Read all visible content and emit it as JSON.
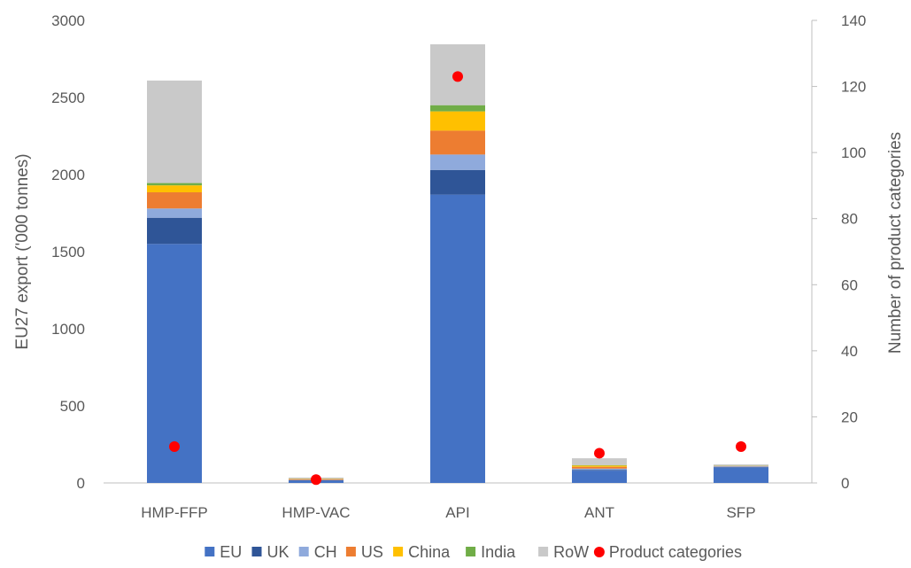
{
  "chart_data": {
    "type": "bar",
    "stacked": true,
    "categories": [
      "HMP-FFP",
      "HMP-VAC",
      "API",
      "ANT",
      "SFP"
    ],
    "series": [
      {
        "name": "EU",
        "color": "#4472C4",
        "values": [
          1550,
          15,
          1870,
          80,
          100
        ]
      },
      {
        "name": "UK",
        "color": "#2F5597",
        "values": [
          170,
          3,
          160,
          5,
          3
        ]
      },
      {
        "name": "CH",
        "color": "#8FAADC",
        "values": [
          60,
          2,
          100,
          8,
          5
        ]
      },
      {
        "name": "US",
        "color": "#ED7D31",
        "values": [
          105,
          5,
          155,
          12,
          2
        ]
      },
      {
        "name": "China",
        "color": "#FFC000",
        "values": [
          45,
          2,
          125,
          8,
          1
        ]
      },
      {
        "name": "India",
        "color": "#70AD47",
        "values": [
          15,
          1,
          40,
          3,
          1
        ]
      },
      {
        "name": "RoW",
        "color": "#C9C9C9",
        "values": [
          665,
          7,
          395,
          44,
          8
        ]
      }
    ],
    "secondary_series": {
      "name": "Product categories",
      "type": "scatter",
      "color": "#FF0000",
      "axis": "right",
      "values": [
        11,
        1,
        123,
        9,
        11
      ]
    },
    "ylabel": "EU27 export ('000 tonnes)",
    "y2label": "Number of product categories",
    "ylim": [
      0,
      3000
    ],
    "y2lim": [
      0,
      140
    ],
    "yticks": [
      "0",
      "500",
      "1000",
      "1500",
      "2000",
      "2500",
      "3000"
    ],
    "y2ticks": [
      "0",
      "20",
      "40",
      "60",
      "80",
      "100",
      "120",
      "140"
    ],
    "grid": false,
    "legend_position": "bottom"
  }
}
